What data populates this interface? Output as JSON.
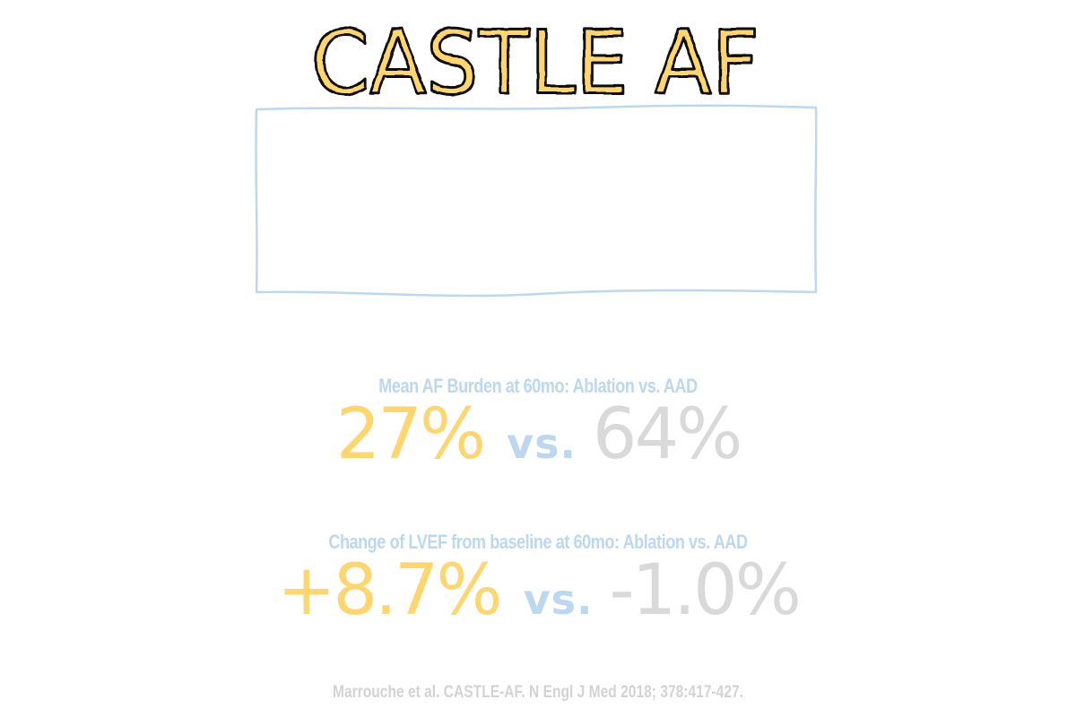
{
  "title": "CASTLE AF",
  "colors": {
    "accent_yellow": "#FFD56E",
    "title_outline": "#111111",
    "light_blue": "#BCD7F0",
    "gray": "#D9D9D9",
    "citation_gray": "#D3D3D3"
  },
  "stats": [
    {
      "label": "Mean AF Burden at 60mo:  Ablation vs. AAD",
      "ablation": "27%",
      "vs": "vs.",
      "aad": "64%"
    },
    {
      "label": "Change of LVEF from baseline at 60mo:  Ablation vs. AAD",
      "ablation": "+8.7%",
      "vs": "vs.",
      "aad": "-1.0%"
    }
  ],
  "citation": "Marrouche et al. CASTLE-AF. N Engl J Med 2018; 378:417-427."
}
